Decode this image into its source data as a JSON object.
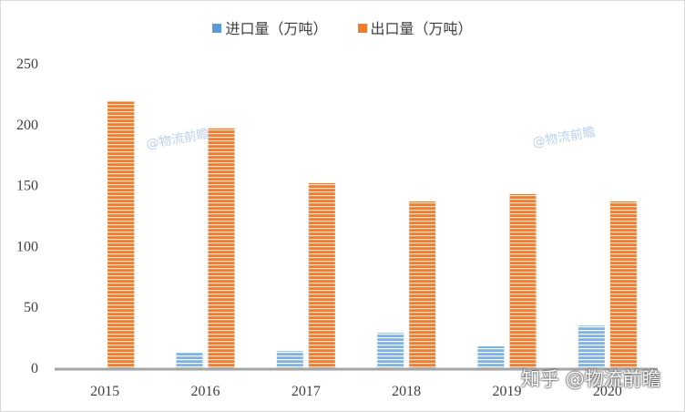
{
  "chart_data": {
    "type": "bar",
    "categories": [
      "2015",
      "2016",
      "2017",
      "2018",
      "2019",
      "2020"
    ],
    "series": [
      {
        "name": "进口量（万吨）",
        "color": "#5b9bd5",
        "values": [
          0,
          13,
          14,
          29,
          18,
          35
        ]
      },
      {
        "name": "出口量（万吨）",
        "color": "#ed7d31",
        "values": [
          219,
          197,
          152,
          137,
          143,
          137
        ]
      }
    ],
    "y_ticks": [
      0,
      50,
      100,
      150,
      200,
      250
    ],
    "ylim": [
      0,
      250
    ],
    "legend_position": "top-center",
    "grid": false
  },
  "watermarks": [
    "@物流前瞻",
    "@物流前瞻"
  ],
  "brand_text": "知乎 @物流前瞻"
}
